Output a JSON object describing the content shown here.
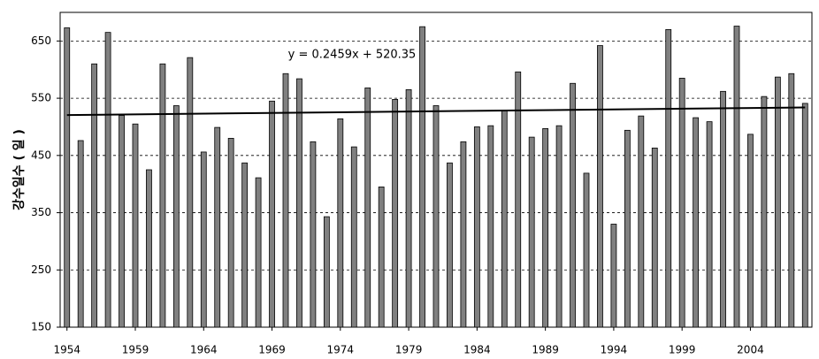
{
  "chart_data": {
    "type": "bar",
    "y_label": "강수일수 ( 일 )",
    "annotation": "y = 0.2459x + 520.35",
    "trendline": {
      "slope": 0.2459,
      "intercept": 520.35
    },
    "categories": [
      "1954",
      null,
      null,
      null,
      null,
      "1959",
      null,
      null,
      null,
      null,
      "1964",
      null,
      null,
      null,
      null,
      "1969",
      null,
      null,
      null,
      null,
      "1974",
      null,
      null,
      null,
      null,
      "1979",
      null,
      null,
      null,
      null,
      "1984",
      null,
      null,
      null,
      null,
      "1989",
      null,
      null,
      null,
      null,
      "1994",
      null,
      null,
      null,
      null,
      "1999",
      null,
      null,
      null,
      null,
      "2004",
      null,
      null,
      null,
      null
    ],
    "values": [
      673,
      476,
      610,
      665,
      520,
      505,
      425,
      610,
      537,
      621,
      456,
      499,
      480,
      437,
      411,
      545,
      593,
      584,
      474,
      343,
      514,
      465,
      568,
      395,
      548,
      565,
      675,
      537,
      437,
      474,
      500,
      502,
      528,
      596,
      482,
      497,
      502,
      576,
      419,
      642,
      330,
      494,
      519,
      463,
      670,
      585,
      516,
      509,
      562,
      676,
      487,
      553,
      587,
      593,
      541
    ],
    "color": "#808080",
    "ylim": [
      150,
      700
    ],
    "yticks": [
      150,
      250,
      350,
      450,
      550,
      650
    ],
    "grid": true
  }
}
